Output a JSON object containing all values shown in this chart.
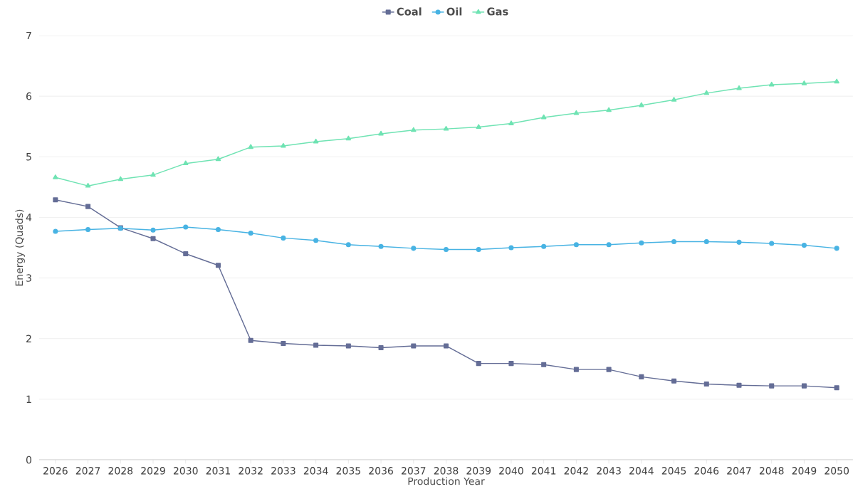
{
  "chart_data": {
    "type": "line",
    "xlabel": "Production Year",
    "ylabel": "Energy (Quads)",
    "categories": [
      "2026",
      "2027",
      "2028",
      "2029",
      "2030",
      "2031",
      "2032",
      "2033",
      "2034",
      "2035",
      "2036",
      "2037",
      "2038",
      "2039",
      "2040",
      "2041",
      "2042",
      "2043",
      "2044",
      "2045",
      "2046",
      "2047",
      "2048",
      "2049",
      "2050"
    ],
    "ylim": [
      0,
      7
    ],
    "yticks": [
      0,
      1,
      2,
      3,
      4,
      5,
      6,
      7
    ],
    "grid": "y",
    "legend": "top",
    "line_style": "solid",
    "series": [
      {
        "name": "Coal",
        "color": "#646d96",
        "marker": "square",
        "values": [
          4.29,
          4.18,
          3.83,
          3.65,
          3.4,
          3.21,
          1.97,
          1.92,
          1.89,
          1.88,
          1.85,
          1.88,
          1.88,
          1.59,
          1.59,
          1.57,
          1.49,
          1.49,
          1.37,
          1.3,
          1.25,
          1.23,
          1.22,
          1.22,
          1.19
        ]
      },
      {
        "name": "Oil",
        "color": "#48b3e3",
        "marker": "circle",
        "values": [
          3.77,
          3.8,
          3.82,
          3.79,
          3.84,
          3.8,
          3.74,
          3.66,
          3.62,
          3.55,
          3.52,
          3.49,
          3.47,
          3.47,
          3.5,
          3.52,
          3.55,
          3.55,
          3.58,
          3.6,
          3.6,
          3.59,
          3.57,
          3.54,
          3.49
        ]
      },
      {
        "name": "Gas",
        "color": "#6fe3b3",
        "marker": "triangle",
        "values": [
          4.66,
          4.52,
          4.63,
          4.7,
          4.89,
          4.96,
          5.16,
          5.18,
          5.25,
          5.3,
          5.38,
          5.44,
          5.46,
          5.49,
          5.55,
          5.65,
          5.72,
          5.77,
          5.85,
          5.94,
          6.05,
          6.13,
          6.19,
          6.21,
          6.24
        ]
      }
    ]
  }
}
